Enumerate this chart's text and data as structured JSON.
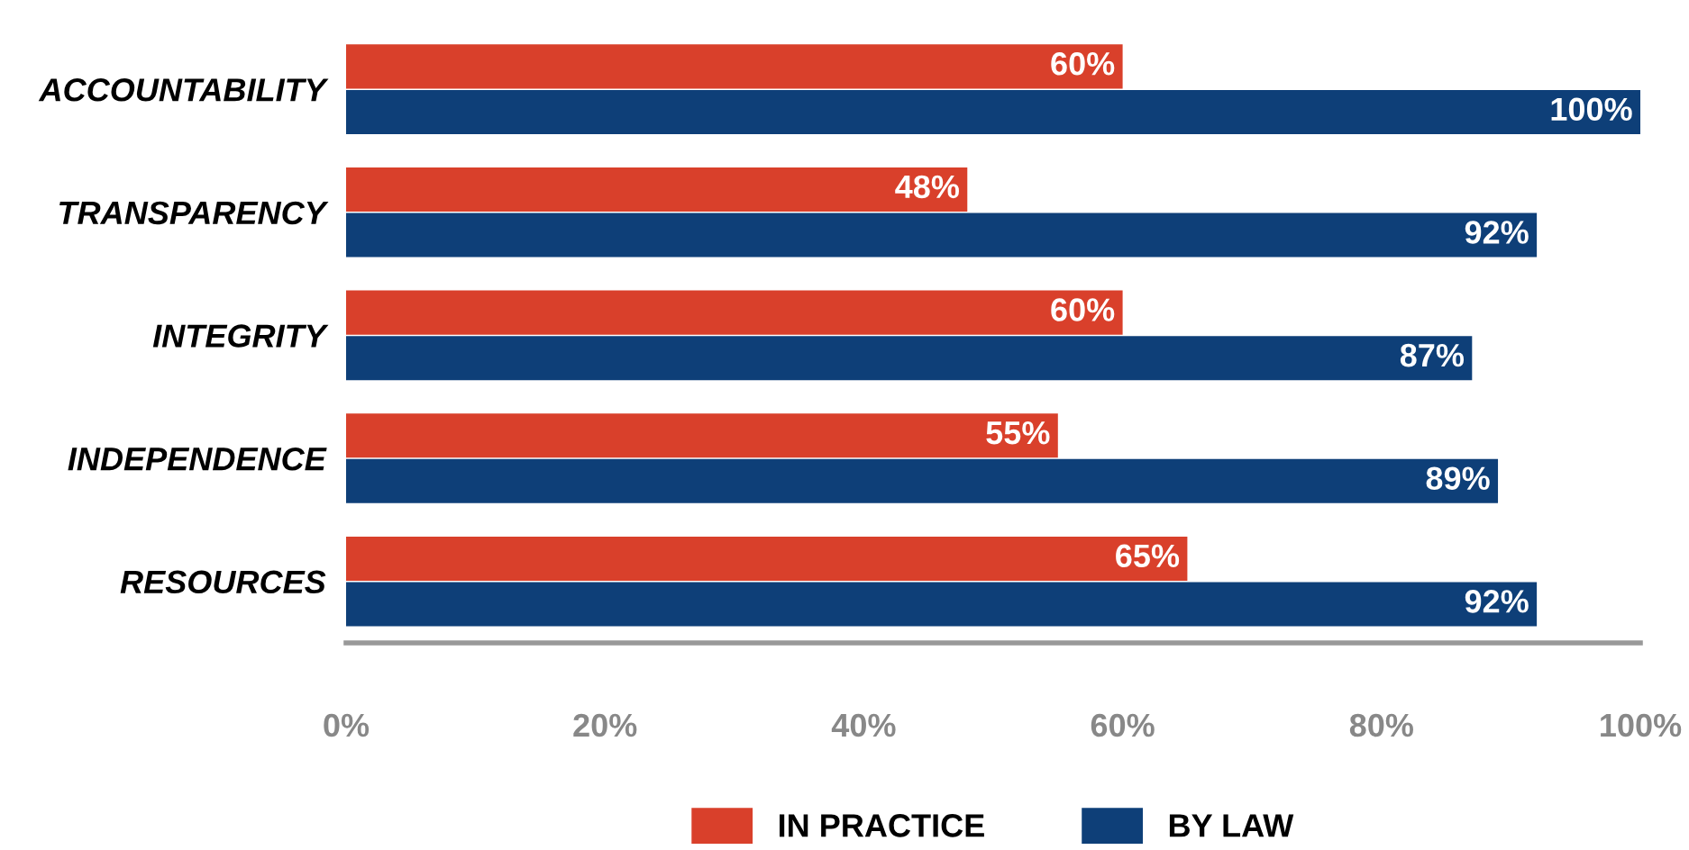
{
  "chart_data": {
    "type": "bar",
    "orientation": "horizontal",
    "categories": [
      "ACCOUNTABILITY",
      "TRANSPARENCY",
      "INTEGRITY",
      "INDEPENDENCE",
      "RESOURCES"
    ],
    "series": [
      {
        "name": "IN PRACTICE",
        "color": "#d9402b",
        "values": [
          60,
          48,
          60,
          55,
          65
        ],
        "value_labels": [
          "60%",
          "48%",
          "60%",
          "55%",
          "65%"
        ]
      },
      {
        "name": "BY LAW",
        "color": "#0e3f78",
        "values": [
          100,
          92,
          87,
          89,
          92
        ],
        "value_labels": [
          "100%",
          "92%",
          "87%",
          "89%",
          "92%"
        ]
      }
    ],
    "xlim": [
      0,
      100
    ],
    "xticks": [
      {
        "value": 0,
        "label": "0%"
      },
      {
        "value": 20,
        "label": "20%"
      },
      {
        "value": 40,
        "label": "40%"
      },
      {
        "value": 60,
        "label": "60%"
      },
      {
        "value": 80,
        "label": "80%"
      },
      {
        "value": 100,
        "label": "100%"
      }
    ],
    "grid": false,
    "legend": "bottom"
  }
}
